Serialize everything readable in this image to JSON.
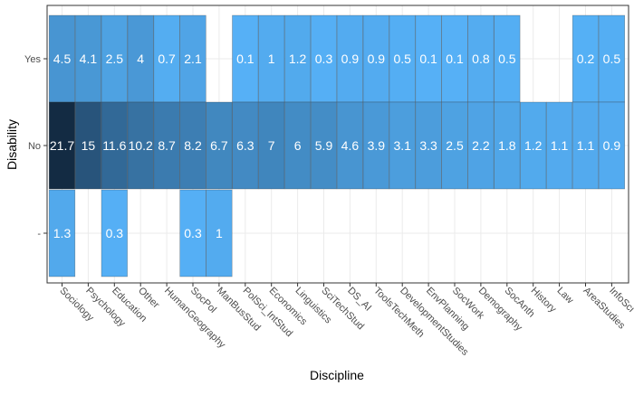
{
  "chart_data": {
    "type": "heatmap",
    "xlabel": "Discipline",
    "ylabel": "Disability",
    "categories": [
      "Sociology",
      "Psychology",
      "Education",
      "Other",
      "HumanGeography",
      "SocPol",
      "ManBusStud",
      "PolSci_IntStud",
      "Economics",
      "Linguistics",
      "SciTechStud",
      "DS_AI",
      "ToolsTechMeth",
      "DevelopmentStudies",
      "EnvPlanning",
      "SocWork",
      "Demography",
      "SocAnth",
      "History",
      "Law",
      "AreaStudies",
      "InfoSci"
    ],
    "rows": [
      "Yes",
      "No",
      "-"
    ],
    "grid": true,
    "series": [
      {
        "name": "Yes",
        "values": [
          4.5,
          4.1,
          2.5,
          4,
          0.7,
          2.1,
          null,
          0.1,
          1,
          1.2,
          0.3,
          0.9,
          0.9,
          0.5,
          0.1,
          0.1,
          0.8,
          0.5,
          null,
          null,
          0.2,
          0.5
        ]
      },
      {
        "name": "No",
        "values": [
          21.7,
          15,
          11.6,
          10.2,
          8.7,
          8.2,
          6.7,
          6.3,
          7,
          6,
          5.9,
          4.6,
          3.9,
          3.1,
          3.3,
          2.5,
          2.2,
          1.8,
          1.2,
          1.1,
          1.1,
          0.9
        ]
      },
      {
        "name": "-",
        "values": [
          1.3,
          null,
          0.3,
          null,
          null,
          0.3,
          1,
          null,
          null,
          null,
          null,
          null,
          null,
          null,
          null,
          null,
          null,
          null,
          null,
          null,
          null,
          null
        ]
      }
    ],
    "value_range": [
      0,
      21.7
    ],
    "colors": {
      "low": "#56B1F7",
      "high": "#132B43",
      "text_dark_cell": "#ffffff",
      "grid": "#EBEBEB",
      "frame": "#333333"
    }
  }
}
